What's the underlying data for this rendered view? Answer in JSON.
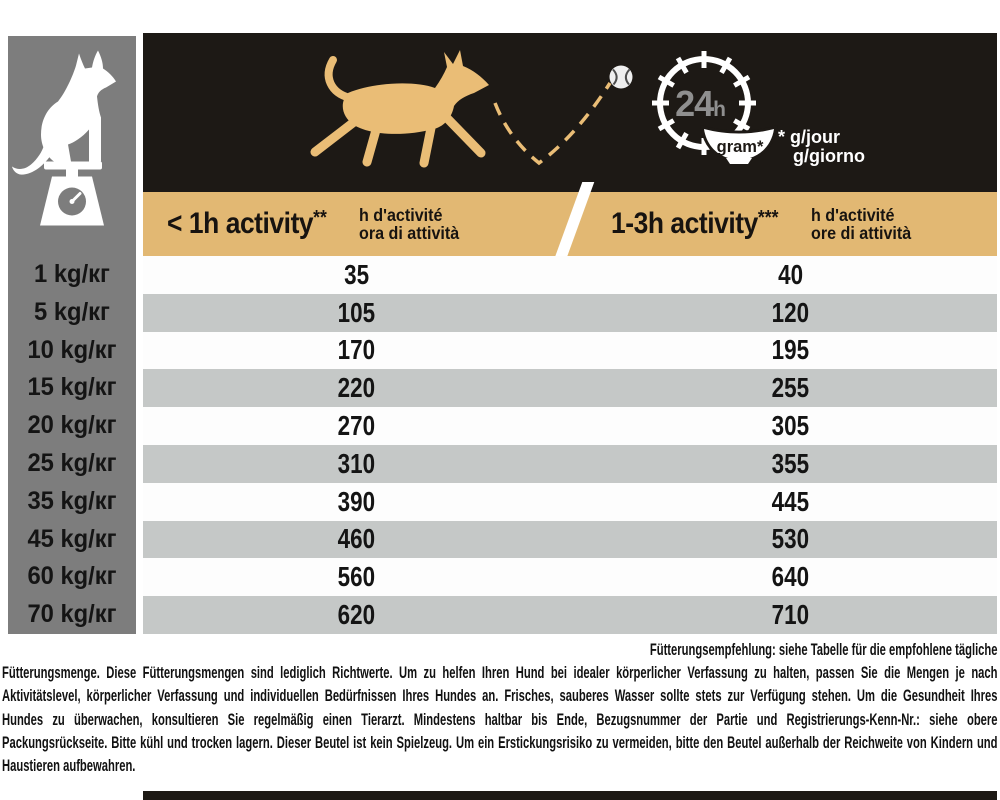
{
  "page": {
    "description": "Dog food feeding guide panel"
  },
  "colors": {
    "gold": "#e2b873",
    "banner_black": "#1d1915",
    "sidebar_gray": "#7d7d7d",
    "row_gray": "#c5c8c7",
    "row_white": "#fdfdfd",
    "clock_text_gray": "#8f8f8f"
  },
  "banner": {
    "clock_hours": "24",
    "clock_unit": "h",
    "bowl_label": "gram*",
    "unit_note_line1": "* g/jour",
    "unit_note_line2": "g/giorno"
  },
  "header": {
    "left": {
      "title": "< 1h activity",
      "stars": "**",
      "sub_fr": "h d'activité",
      "sub_it": "ora di attività"
    },
    "right": {
      "title": "1-3h activity",
      "stars": "***",
      "sub_fr": "h d'activité",
      "sub_it": "ore di attività"
    }
  },
  "table": {
    "rows": [
      {
        "weight": "1 kg/кг",
        "low": "35",
        "high": "40"
      },
      {
        "weight": "5 kg/кг",
        "low": "105",
        "high": "120"
      },
      {
        "weight": "10 kg/кг",
        "low": "170",
        "high": "195"
      },
      {
        "weight": "15 kg/кг",
        "low": "220",
        "high": "255"
      },
      {
        "weight": "20 kg/кг",
        "low": "270",
        "high": "305"
      },
      {
        "weight": "25 kg/кг",
        "low": "310",
        "high": "355"
      },
      {
        "weight": "35 kg/кг",
        "low": "390",
        "high": "445"
      },
      {
        "weight": "45 kg/кг",
        "low": "460",
        "high": "530"
      },
      {
        "weight": "60 kg/кг",
        "low": "560",
        "high": "640"
      },
      {
        "weight": "70 kg/кг",
        "low": "620",
        "high": "710"
      }
    ]
  },
  "footer": {
    "heading": "Fütterungsempfehlung:",
    "heading_rest": " siehe Tabelle für die empfohlene tägliche",
    "lines": [
      "Fütterungsmenge. Diese Fütterungsmengen sind lediglich Richtwerte. Um zu helfen Ihren Hund bei idealer körperlicher Verfassung zu halten, passen Sie die Mengen je nach",
      "Aktivitätslevel, körperlicher Verfassung und individuellen Bedürfnissen Ihres Hundes an. Frisches, sauberes Wasser sollte stets zur Verfügung stehen. Um die Gesundheit Ihres",
      "Hundes zu überwachen, konsultieren Sie regelmäßig einen Tierarzt. Mindestens haltbar bis Ende, Bezugsnummer der Partie und Registrierungs-Kenn-Nr.: siehe obere",
      "Packungsrückseite. Bitte kühl und trocken lagern. Dieser Beutel ist kein Spielzeug. Um ein Erstickungsrisiko zu vermeiden, bitte den Beutel außerhalb der Reichweite von Kindern und",
      "Haustieren aufbewahren."
    ]
  },
  "chart_data": {
    "type": "table",
    "columns": [
      "weight",
      "< 1h activity** (g/day)",
      "1-3h activity*** (g/day)"
    ],
    "rows": [
      [
        "1 kg/кг",
        35,
        40
      ],
      [
        "5 kg/кг",
        105,
        120
      ],
      [
        "10 kg/кг",
        170,
        195
      ],
      [
        "15 kg/кг",
        220,
        255
      ],
      [
        "20 kg/кг",
        270,
        305
      ],
      [
        "25 kg/кг",
        310,
        355
      ],
      [
        "35 kg/кг",
        390,
        445
      ],
      [
        "45 kg/кг",
        460,
        530
      ],
      [
        "60 kg/кг",
        560,
        640
      ],
      [
        "70 kg/кг",
        620,
        710
      ]
    ]
  }
}
